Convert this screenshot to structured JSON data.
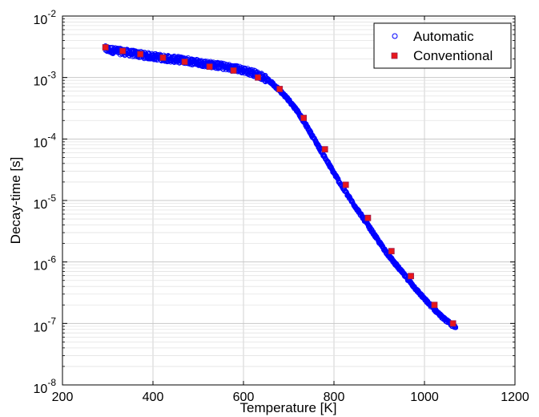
{
  "chart_data": {
    "type": "scatter",
    "xlabel": "Temperature [K]",
    "ylabel": "Decay-time [s]",
    "xlim": [
      200,
      1200
    ],
    "ylim": [
      1e-08,
      0.01
    ],
    "yscale": "log",
    "grid": true,
    "legend_position": "top-right",
    "x_ticks": [
      {
        "value": 200,
        "label": "200"
      },
      {
        "value": 400,
        "label": "400"
      },
      {
        "value": 600,
        "label": "600"
      },
      {
        "value": 800,
        "label": "800"
      },
      {
        "value": 1000,
        "label": "1000"
      },
      {
        "value": 1200,
        "label": "1200"
      }
    ],
    "y_ticks": [
      {
        "value": 1e-08,
        "base": "10",
        "exp": "-8"
      },
      {
        "value": 1e-07,
        "base": "10",
        "exp": "-7"
      },
      {
        "value": 1e-06,
        "base": "10",
        "exp": "-6"
      },
      {
        "value": 1e-05,
        "base": "10",
        "exp": "-5"
      },
      {
        "value": 0.0001,
        "base": "10",
        "exp": "-4"
      },
      {
        "value": 0.001,
        "base": "10",
        "exp": "-3"
      },
      {
        "value": 0.01,
        "base": "10",
        "exp": "-2"
      }
    ],
    "series": [
      {
        "name": "Automatic",
        "marker": "open-circle",
        "color": "#0000ff",
        "x": [
          295,
          320,
          350,
          380,
          410,
          440,
          470,
          500,
          530,
          560,
          590,
          620,
          640,
          660,
          680,
          700,
          720,
          740,
          760,
          780,
          800,
          820,
          840,
          860,
          880,
          900,
          920,
          940,
          960,
          980,
          1000,
          1020,
          1040,
          1060,
          1070
        ],
        "y": [
          0.0029,
          0.0027,
          0.0025,
          0.0023,
          0.00215,
          0.002,
          0.0019,
          0.00175,
          0.00162,
          0.0015,
          0.00137,
          0.0012,
          0.00105,
          0.00085,
          0.00062,
          0.00043,
          0.00028,
          0.00016,
          9e-05,
          5e-05,
          2.8e-05,
          1.6e-05,
          9.5e-06,
          5.8e-06,
          3.5e-06,
          2.1e-06,
          1.3e-06,
          8.5e-07,
          5.6e-07,
          3.7e-07,
          2.5e-07,
          1.75e-07,
          1.25e-07,
          9.5e-08,
          8.5e-08
        ]
      },
      {
        "name": "Conventional",
        "marker": "filled-square",
        "color": "#e8161b",
        "x": [
          295,
          333,
          372,
          422,
          470,
          525,
          578,
          632,
          680,
          733,
          780,
          826,
          875,
          927,
          970,
          1022,
          1063
        ],
        "y": [
          0.0031,
          0.0027,
          0.0024,
          0.0021,
          0.0018,
          0.0015,
          0.0013,
          0.001,
          0.00065,
          0.00022,
          6.8e-05,
          1.8e-05,
          5.2e-06,
          1.5e-06,
          5.9e-07,
          2e-07,
          1e-07
        ]
      }
    ]
  }
}
